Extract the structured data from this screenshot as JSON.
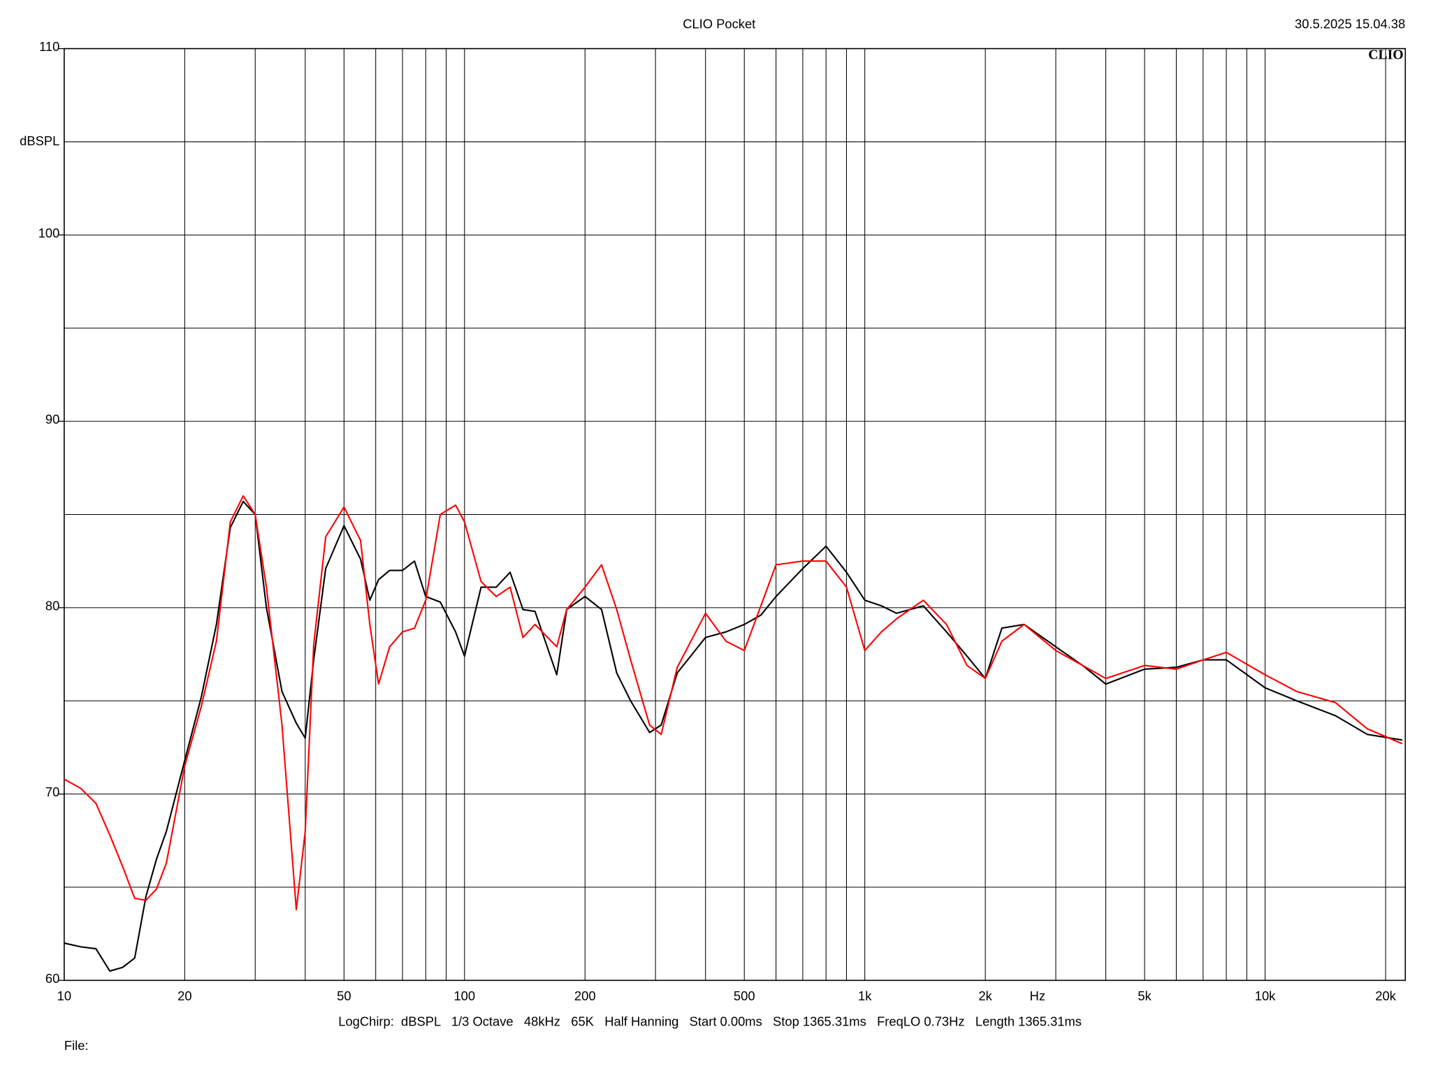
{
  "chart_data": {
    "type": "line",
    "title": "CLIO Pocket",
    "timestamp": "30.5.2025 15.04.38",
    "logo": "CLIO",
    "y_label": "dBSPL",
    "x_label": "Hz",
    "footer": "LogChirp:  dBSPL   1/3 Octave   48kHz   65K   Half Hanning   Start 0.00ms   Stop 1365.31ms   FreqLO 0.73Hz   Length 1365.31ms",
    "file_label": "File:",
    "xscale": "log",
    "grid": true,
    "xlim": [
      10,
      22400
    ],
    "ylim": [
      60,
      110
    ],
    "xticks": [
      10,
      20,
      50,
      100,
      200,
      500,
      {
        "value": 1000,
        "label": "1k"
      },
      {
        "value": 2000,
        "label": "2k"
      },
      {
        "value": 5000,
        "label": "5k"
      },
      {
        "value": 10000,
        "label": "10k"
      },
      {
        "value": 20000,
        "label": "20k"
      }
    ],
    "x_minor_ticks": [
      30,
      40,
      60,
      70,
      80,
      90,
      300,
      400,
      600,
      700,
      800,
      900,
      3000,
      4000,
      6000,
      7000,
      8000,
      9000
    ],
    "yticks": [
      60,
      70,
      80,
      90,
      100,
      110
    ],
    "y_minor_ticks": [
      65,
      75,
      85,
      95,
      105
    ],
    "x": [
      10,
      11,
      12,
      13,
      14,
      15,
      16,
      17,
      18,
      20,
      22,
      24,
      26,
      28,
      30,
      32,
      35,
      38,
      40,
      42,
      45,
      50,
      55,
      58,
      61,
      65,
      70,
      75,
      80,
      87,
      95,
      100,
      110,
      120,
      130,
      140,
      150,
      170,
      180,
      200,
      220,
      240,
      260,
      290,
      310,
      340,
      400,
      450,
      500,
      550,
      600,
      700,
      800,
      900,
      1000,
      1100,
      1200,
      1400,
      1600,
      1800,
      2000,
      2200,
      2500,
      3000,
      3500,
      4000,
      5000,
      6000,
      7000,
      8000,
      10000,
      12000,
      15000,
      18000,
      22000
    ],
    "series": [
      {
        "color": "#000000",
        "values": [
          62.0,
          61.8,
          61.7,
          60.5,
          60.7,
          61.2,
          64.5,
          66.5,
          68.0,
          71.8,
          75.2,
          79.1,
          84.3,
          85.7,
          85.0,
          80.0,
          75.5,
          73.8,
          73.0,
          77.2,
          82.1,
          84.4,
          82.6,
          80.4,
          81.5,
          82.0,
          82.0,
          82.5,
          80.6,
          80.3,
          78.7,
          77.4,
          81.1,
          81.1,
          81.9,
          79.9,
          79.8,
          76.4,
          79.9,
          80.6,
          79.9,
          76.5,
          75.0,
          73.3,
          73.7,
          76.5,
          78.4,
          78.7,
          79.1,
          79.6,
          80.6,
          82.1,
          83.3,
          81.9,
          80.4,
          80.1,
          79.7,
          80.1,
          78.7,
          77.4,
          76.2,
          78.9,
          79.1,
          77.9,
          76.9,
          75.9,
          76.7,
          76.8,
          77.2,
          77.2,
          75.7,
          75.0,
          74.2,
          73.2,
          72.9
        ]
      },
      {
        "color": "#ff0000",
        "values": [
          70.8,
          70.3,
          69.5,
          67.8,
          66.1,
          64.4,
          64.3,
          64.9,
          66.3,
          71.5,
          74.7,
          78.2,
          84.6,
          86.0,
          85.0,
          81.1,
          73.7,
          63.8,
          68.0,
          78.0,
          83.8,
          85.4,
          83.6,
          79.1,
          75.9,
          77.9,
          78.7,
          78.9,
          80.4,
          85.0,
          85.5,
          84.6,
          81.4,
          80.6,
          81.1,
          78.4,
          79.1,
          77.9,
          79.9,
          81.1,
          82.3,
          79.9,
          77.2,
          73.7,
          73.2,
          76.8,
          79.7,
          78.2,
          77.7,
          80.1,
          82.3,
          82.5,
          82.5,
          81.1,
          77.7,
          78.7,
          79.4,
          80.4,
          79.1,
          76.9,
          76.2,
          78.2,
          79.1,
          77.7,
          76.9,
          76.2,
          76.9,
          76.7,
          77.2,
          77.6,
          76.4,
          75.5,
          74.9,
          73.5,
          72.7
        ]
      }
    ]
  }
}
